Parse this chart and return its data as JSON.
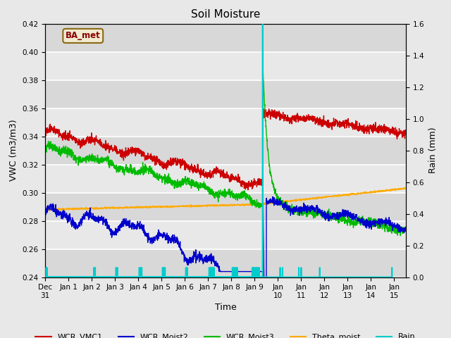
{
  "title": "Soil Moisture",
  "xlabel": "Time",
  "ylabel_left": "VWC (m3/m3)",
  "ylabel_right": "Rain (mm)",
  "ylim_left": [
    0.24,
    0.42
  ],
  "ylim_right": [
    0.0,
    1.6
  ],
  "background_color": "#e8e8e8",
  "plot_bg_color": "#e0e0e0",
  "grid_color": "#ffffff",
  "station_label": "BA_met",
  "legend_entries": [
    "WCR_VMC1",
    "WCR_Moist2",
    "WCR_Moist3",
    "Theta_moist",
    "Rain"
  ],
  "line_colors": {
    "WCR_VMC1": "#cc0000",
    "WCR_Moist2": "#0000cc",
    "WCR_Moist3": "#00bb00",
    "Theta_moist": "#ffaa00",
    "Rain": "#00cccc"
  },
  "num_days": 15.5,
  "rain_spike_day": 9.35,
  "rain_spike_value": 1.6,
  "rain_small_spikes": [
    0.05,
    0.08,
    2.1,
    2.15,
    3.05,
    3.1,
    4.05,
    4.1,
    4.15,
    5.05,
    5.1,
    5.15,
    6.05,
    6.1,
    7.05,
    7.1,
    7.15,
    7.2,
    7.25,
    8.05,
    8.1,
    8.15,
    8.2,
    8.25,
    8.9,
    8.95,
    9.0,
    9.05,
    9.1,
    9.15,
    9.2,
    10.1,
    10.2,
    10.9,
    11.0,
    11.8,
    14.9
  ],
  "rain_small_value": 0.06
}
